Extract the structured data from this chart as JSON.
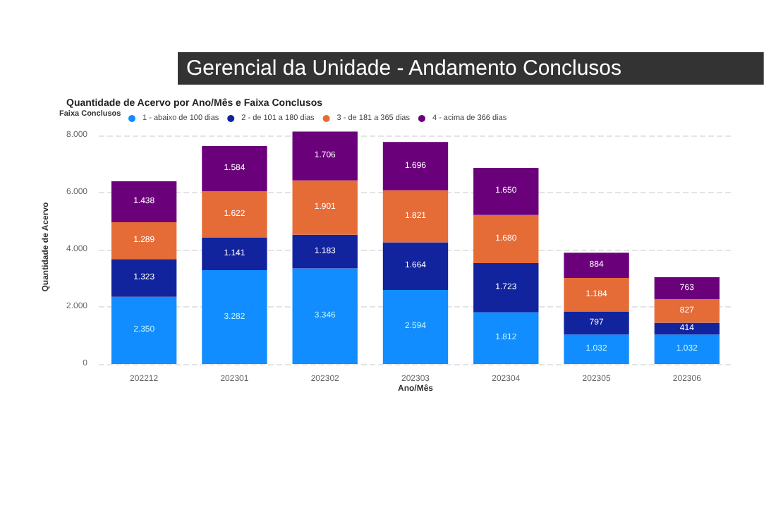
{
  "chart_data": {
    "type": "bar",
    "stacked": true,
    "title": "Gerencial da Unidade - Andamento Conclusos",
    "subtitle": "Quantidade de Acervo por Ano/Mês e Faixa Conclusos",
    "legend_title": "Faixa Conclusos",
    "xlabel": "Ano/Mês",
    "ylabel": "Quantidade de Acervo",
    "categories": [
      "202212",
      "202301",
      "202302",
      "202303",
      "202304",
      "202305",
      "202306"
    ],
    "series": [
      {
        "name": "1 - abaixo de 100 dias",
        "color": "#118dff",
        "values": [
          2350,
          3282,
          3346,
          2594,
          1812,
          1032,
          1032
        ],
        "value_labels": [
          "2.350",
          "3.282",
          "3.346",
          "2.594",
          "1.812",
          "1.032",
          "1.032"
        ]
      },
      {
        "name": "2 - de 101 a 180 dias",
        "color": "#12239e",
        "values": [
          1323,
          1141,
          1183,
          1664,
          1723,
          797,
          414
        ],
        "value_labels": [
          "1.323",
          "1.141",
          "1.183",
          "1.664",
          "1.723",
          "797",
          "414"
        ]
      },
      {
        "name": "3 - de 181 a 365 dias",
        "color": "#e66c37",
        "values": [
          1289,
          1622,
          1901,
          1821,
          1680,
          1184,
          827
        ],
        "value_labels": [
          "1.289",
          "1.622",
          "1.901",
          "1.821",
          "1.680",
          "1.184",
          "827"
        ]
      },
      {
        "name": "4 - acima de 366 dias",
        "color": "#6b007b",
        "values": [
          1438,
          1584,
          1706,
          1696,
          1650,
          884,
          763
        ],
        "value_labels": [
          "1.438",
          "1.584",
          "1.706",
          "1.696",
          "1.650",
          "884",
          "763"
        ]
      }
    ],
    "ylim": [
      0,
      8200
    ],
    "yticks": [
      {
        "value": 0,
        "label": "0"
      },
      {
        "value": 2000,
        "label": "2.000"
      },
      {
        "value": 4000,
        "label": "4.000"
      },
      {
        "value": 6000,
        "label": "6.000"
      },
      {
        "value": 8000,
        "label": "8.000"
      }
    ],
    "grid": "y",
    "legend": "top left"
  }
}
